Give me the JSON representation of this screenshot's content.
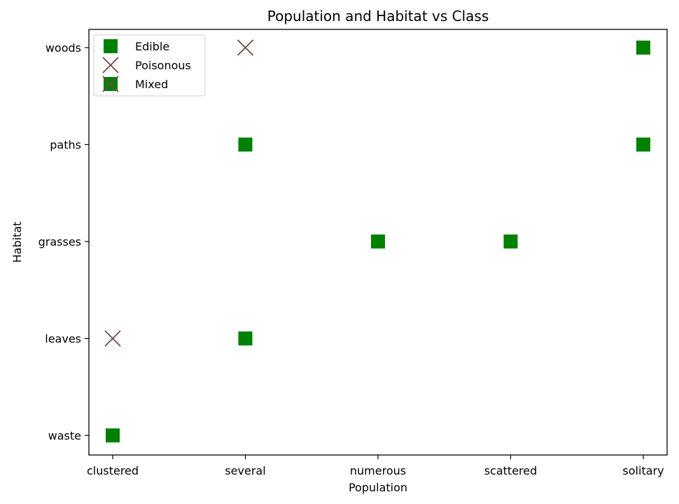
{
  "chart_data": {
    "type": "scatter",
    "title": "Population and Habitat vs Class",
    "xlabel": "Population",
    "ylabel": "Habitat",
    "x_categories": [
      "clustered",
      "several",
      "numerous",
      "scattered",
      "solitary"
    ],
    "y_categories": [
      "waste",
      "leaves",
      "grasses",
      "paths",
      "woods"
    ],
    "grid": false,
    "legend_position": "top-left",
    "series": [
      {
        "name": "Edible",
        "marker": "square",
        "color": "#008000",
        "points": [
          {
            "x": "clustered",
            "y": "waste"
          },
          {
            "x": "several",
            "y": "leaves"
          },
          {
            "x": "several",
            "y": "paths"
          },
          {
            "x": "numerous",
            "y": "grasses"
          },
          {
            "x": "scattered",
            "y": "grasses"
          },
          {
            "x": "solitary",
            "y": "paths"
          },
          {
            "x": "solitary",
            "y": "woods"
          }
        ]
      },
      {
        "name": "Poisonous",
        "marker": "x",
        "color": "#6b4a45",
        "points": [
          {
            "x": "clustered",
            "y": "leaves"
          },
          {
            "x": "several",
            "y": "woods"
          }
        ]
      },
      {
        "name": "Mixed",
        "marker": "square-x",
        "color": "#008000",
        "cross_color": "#6b4a45",
        "points": []
      }
    ]
  }
}
